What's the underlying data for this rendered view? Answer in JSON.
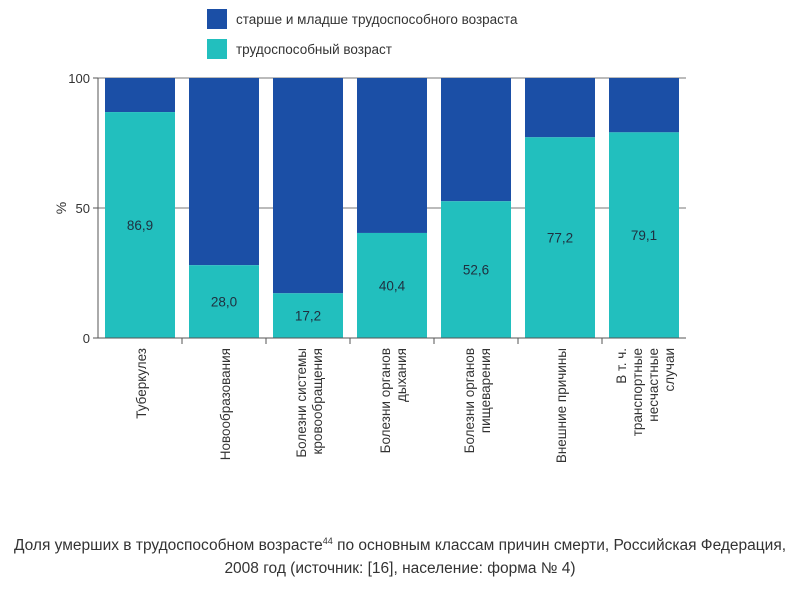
{
  "chart_data": {
    "type": "bar",
    "stacked": true,
    "normalized_percent": true,
    "ylabel": "%",
    "ylim": [
      0,
      100
    ],
    "yticks": [
      "0",
      "50",
      "100"
    ],
    "legend_position": "top",
    "categories": [
      [
        "Туберкулез"
      ],
      [
        "Новообразования"
      ],
      [
        "Болезни системы",
        "кровообращения"
      ],
      [
        "Болезни органов",
        "дыхания"
      ],
      [
        "Болезни органов",
        "пищеварения"
      ],
      [
        "Внешние причины"
      ],
      [
        "В т. ч.",
        "транспортные",
        "несчастные",
        "случаи"
      ]
    ],
    "series": [
      {
        "name": "трудоспособный возраст",
        "color": "#22bfbe",
        "values": [
          86.9,
          28.0,
          17.2,
          40.4,
          52.6,
          77.2,
          79.1
        ],
        "labels": [
          "86,9",
          "28,0",
          "17,2",
          "40,4",
          "52,6",
          "77,2",
          "79,1"
        ]
      },
      {
        "name": "старше и младше трудоспособного возраста",
        "color": "#1b4fa6",
        "values": [
          13.1,
          72.0,
          82.8,
          59.6,
          47.4,
          22.8,
          20.9
        ]
      }
    ]
  },
  "caption": {
    "line1_before": "Доля умерших в трудоспособном возрасте",
    "sup": "44",
    "line1_after": " по основным классам причин смерти, Российская Федерация,",
    "line2": "2008 год (источник: [16], население: форма № 4)"
  }
}
